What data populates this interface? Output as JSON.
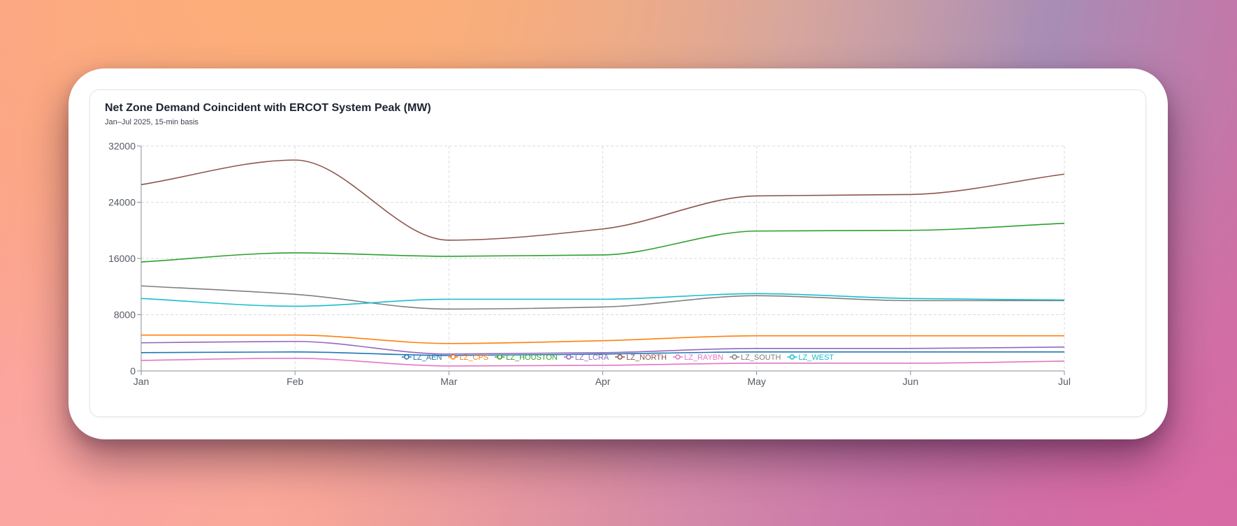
{
  "chart_data": {
    "type": "line",
    "title": "Net Zone Demand Coincident with ERCOT System Peak (MW)",
    "subtitle": "Jan–Jul 2025, 15-min basis",
    "xlabel": "",
    "ylabel": "",
    "categories": [
      "Jan",
      "Feb",
      "Mar",
      "Apr",
      "May",
      "Jun",
      "Jul"
    ],
    "ylim": [
      0,
      32000
    ],
    "yticks": [
      0,
      8000,
      16000,
      24000,
      32000
    ],
    "ytick_labels": [
      "0",
      "8000",
      "16000",
      "24000",
      "32000"
    ],
    "grid": true,
    "legend_position": "bottom-center",
    "curve": "smooth",
    "series": [
      {
        "name": "LZ_AEN",
        "color": "#1f77b4",
        "values": [
          2600,
          2700,
          2200,
          2400,
          2700,
          2700,
          2700
        ]
      },
      {
        "name": "LZ_CPS",
        "color": "#ff7f0e",
        "values": [
          5100,
          5100,
          3900,
          4300,
          5000,
          5000,
          5000
        ]
      },
      {
        "name": "LZ_HOUSTON",
        "color": "#2ca02c",
        "values": [
          15500,
          16800,
          16300,
          16500,
          19900,
          20000,
          21000
        ]
      },
      {
        "name": "LZ_LCRA",
        "color": "#9467bd",
        "values": [
          4000,
          4200,
          2400,
          2600,
          3200,
          3200,
          3400
        ]
      },
      {
        "name": "LZ_NORTH",
        "color": "#8c564b",
        "values": [
          26500,
          30000,
          18600,
          20200,
          24900,
          25100,
          28000
        ]
      },
      {
        "name": "LZ_RAYBN",
        "color": "#e377c2",
        "values": [
          1500,
          1800,
          700,
          800,
          1100,
          1100,
          1400
        ]
      },
      {
        "name": "LZ_SOUTH",
        "color": "#7f7f7f",
        "values": [
          12100,
          10900,
          8800,
          9100,
          10700,
          10000,
          10000
        ]
      },
      {
        "name": "LZ_WEST",
        "color": "#17becf",
        "values": [
          10300,
          9200,
          10200,
          10200,
          11000,
          10300,
          10100
        ]
      }
    ]
  }
}
